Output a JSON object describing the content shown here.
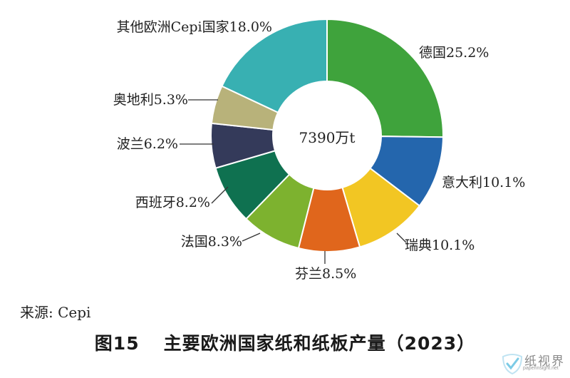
{
  "chart_data": {
    "type": "pie",
    "center_label": "7390万t",
    "slices": [
      {
        "label": "德国",
        "value": 25.2,
        "text": "德国25.2%",
        "color": "#3fa33c"
      },
      {
        "label": "意大利",
        "value": 10.1,
        "text": "意大利10.1%",
        "color": "#2466ad"
      },
      {
        "label": "瑞典",
        "value": 10.1,
        "text": "瑞典10.1%",
        "color": "#f2c623"
      },
      {
        "label": "芬兰",
        "value": 8.5,
        "text": "芬兰8.5%",
        "color": "#e0661c"
      },
      {
        "label": "法国",
        "value": 8.3,
        "text": "法国8.3%",
        "color": "#7db22f"
      },
      {
        "label": "西班牙",
        "value": 8.2,
        "text": "西班牙8.2%",
        "color": "#0f7150"
      },
      {
        "label": "波兰",
        "value": 6.2,
        "text": "波兰6.2%",
        "color": "#343a5a"
      },
      {
        "label": "奥地利",
        "value": 5.3,
        "text": "奥地利5.3%",
        "color": "#b8b27a"
      },
      {
        "label": "其他欧洲Cepi国家",
        "value": 18.0,
        "text": "其他欧洲Cepi国家18.0%",
        "color": "#38b0b2"
      }
    ]
  },
  "source": "来源: Cepi",
  "caption": {
    "number": "图15",
    "title": "主要欧洲国家纸和纸板产量（2023）"
  },
  "watermark": {
    "text": "纸视界",
    "url": "paperinsight.net"
  }
}
